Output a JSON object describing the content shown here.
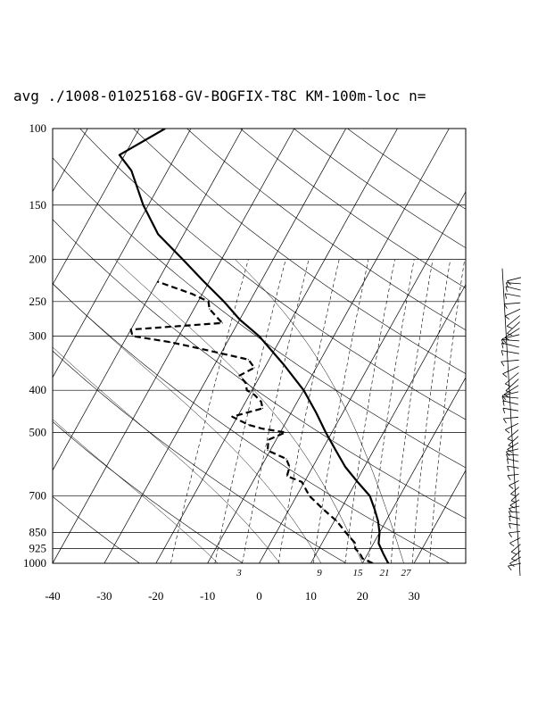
{
  "title": "avg ./1008-01025168-GV-BOGFIX-T8C KM-100m-loc n=",
  "chart_data": {
    "type": "line",
    "subtype": "skew-T log-P sounding",
    "x_axis": {
      "label": "",
      "ticks": [
        -40,
        -30,
        -20,
        -10,
        0,
        10,
        20,
        30
      ],
      "units": "temperature (C) at 1000 hPa",
      "range": [
        -40,
        40
      ]
    },
    "y_axis": {
      "label": "",
      "scale": "log",
      "ticks": [
        100,
        150,
        200,
        250,
        300,
        400,
        500,
        700,
        850,
        925,
        1000
      ],
      "range": [
        1000,
        100
      ]
    },
    "mixing_ratio_labels": [
      "3",
      "9",
      "15",
      "21",
      "27"
    ],
    "series": [
      {
        "style": "solid",
        "points": [
          [
            1000,
            25
          ],
          [
            975,
            24
          ],
          [
            950,
            23
          ],
          [
            925,
            22
          ],
          [
            900,
            21
          ],
          [
            850,
            20
          ],
          [
            800,
            18.5
          ],
          [
            750,
            16.5
          ],
          [
            700,
            14.2
          ],
          [
            650,
            10.3
          ],
          [
            600,
            6.3
          ],
          [
            550,
            2.7
          ],
          [
            500,
            -1.2
          ],
          [
            450,
            -5.2
          ],
          [
            400,
            -10
          ],
          [
            350,
            -16.5
          ],
          [
            300,
            -24.5
          ],
          [
            275,
            -30
          ],
          [
            250,
            -35
          ],
          [
            225,
            -41
          ],
          [
            200,
            -47.5
          ],
          [
            175,
            -55
          ],
          [
            150,
            -61
          ],
          [
            125,
            -67
          ],
          [
            115,
            -71
          ],
          [
            100,
            -65
          ]
        ]
      },
      {
        "style": "dashed",
        "points": [
          [
            1000,
            22
          ],
          [
            975,
            19.5
          ],
          [
            950,
            18.5
          ],
          [
            925,
            17
          ],
          [
            900,
            16.5
          ],
          [
            875,
            15
          ],
          [
            850,
            13.5
          ],
          [
            800,
            10.5
          ],
          [
            750,
            6.5
          ],
          [
            700,
            2.5
          ],
          [
            650,
            -0.5
          ],
          [
            630,
            -4
          ],
          [
            600,
            -4.5
          ],
          [
            575,
            -6
          ],
          [
            550,
            -10.5
          ],
          [
            520,
            -11.5
          ],
          [
            500,
            -9
          ],
          [
            490,
            -14
          ],
          [
            480,
            -17
          ],
          [
            470,
            -19
          ],
          [
            460,
            -21
          ],
          [
            440,
            -16
          ],
          [
            425,
            -17
          ],
          [
            410,
            -19
          ],
          [
            400,
            -21
          ],
          [
            385,
            -22
          ],
          [
            370,
            -24
          ],
          [
            355,
            -22
          ],
          [
            340,
            -24
          ],
          [
            320,
            -35
          ],
          [
            310,
            -41
          ],
          [
            300,
            -49
          ],
          [
            290,
            -50
          ],
          [
            280,
            -33
          ],
          [
            275,
            -34
          ],
          [
            260,
            -37
          ],
          [
            250,
            -38
          ],
          [
            240,
            -42
          ],
          [
            225,
            -50
          ]
        ]
      }
    ],
    "wind_barbs": {
      "levels": 46,
      "range": [
        1000,
        220
      ]
    }
  }
}
